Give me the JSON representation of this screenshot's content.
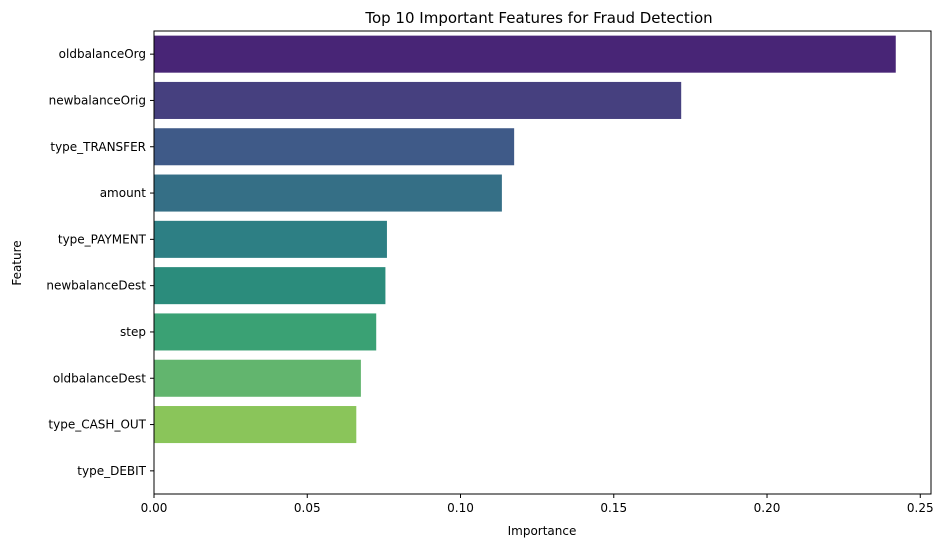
{
  "chart_data": {
    "type": "bar",
    "orientation": "horizontal",
    "title": "Top 10 Important Features for Fraud Detection",
    "xlabel": "Importance",
    "ylabel": "Feature",
    "xlim": [
      0,
      0.2535
    ],
    "xticks": [
      0.0,
      0.05,
      0.1,
      0.15,
      0.2,
      0.25
    ],
    "xtick_labels": [
      "0.00",
      "0.05",
      "0.10",
      "0.15",
      "0.20",
      "0.25"
    ],
    "grid": false,
    "legend": "none",
    "colormap": "viridis",
    "categories": [
      "oldbalanceOrg",
      "newbalanceOrig",
      "type_TRANSFER",
      "amount",
      "type_PAYMENT",
      "newbalanceDest",
      "step",
      "oldbalanceDest",
      "type_CASH_OUT",
      "type_DEBIT"
    ],
    "values": [
      0.242,
      0.172,
      0.1175,
      0.1135,
      0.076,
      0.0755,
      0.0725,
      0.0675,
      0.066,
      0.0
    ],
    "colors": [
      "#482576",
      "#46407f",
      "#3f5a88",
      "#356f86",
      "#2d7f84",
      "#2b8c7c",
      "#3aa174",
      "#62b56e",
      "#8ac55a",
      "#c7d845"
    ]
  }
}
